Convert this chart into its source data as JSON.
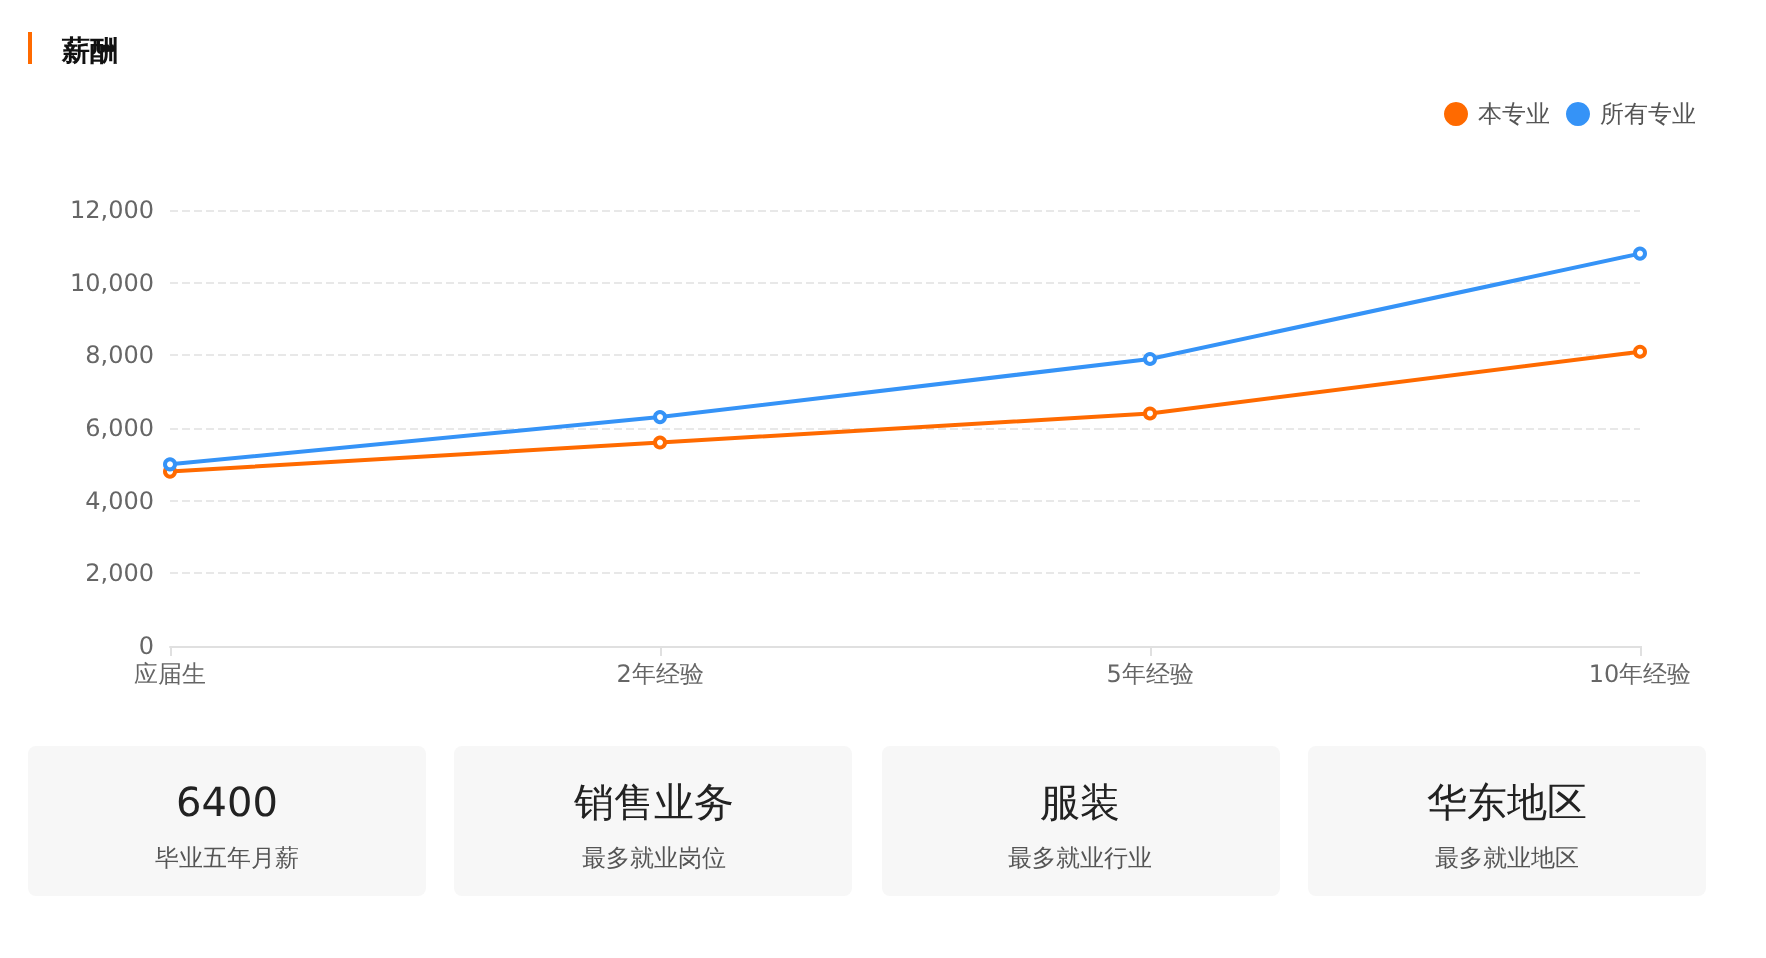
{
  "chart_data": [
    {
      "type": "line",
      "title": "薪酬",
      "categories": [
        "应届生",
        "2年经验",
        "5年经验",
        "10年经验"
      ],
      "series": [
        {
          "name": "本专业",
          "color": "#ff6a00",
          "values": [
            4800,
            5600,
            6400,
            8100
          ]
        },
        {
          "name": "所有专业",
          "color": "#3593f7",
          "values": [
            5000,
            6300,
            7900,
            10800
          ]
        }
      ],
      "ylim": [
        0,
        12000
      ],
      "yticks": [
        0,
        {
          "value": 2000,
          "label": "2,000"
        },
        {
          "value": 4000,
          "label": "4,000"
        },
        {
          "value": 6000,
          "label": "6,000"
        },
        {
          "value": 8000,
          "label": "8,000"
        },
        {
          "value": 10000,
          "label": "10,000"
        },
        {
          "value": 12000,
          "label": "12,000"
        }
      ],
      "grid": "y",
      "legend": "top right",
      "marker": "circle"
    },
    {
      "type": "other",
      "title": "6400",
      "subtitle": "毕业五年月薪"
    },
    {
      "type": "other",
      "title": "销售业务",
      "subtitle": "最多就业岗位"
    },
    {
      "type": "other",
      "title": "服装",
      "subtitle": "最多就业行业"
    },
    {
      "type": "other",
      "title": "华东地区",
      "subtitle": "最多就业地区"
    }
  ]
}
